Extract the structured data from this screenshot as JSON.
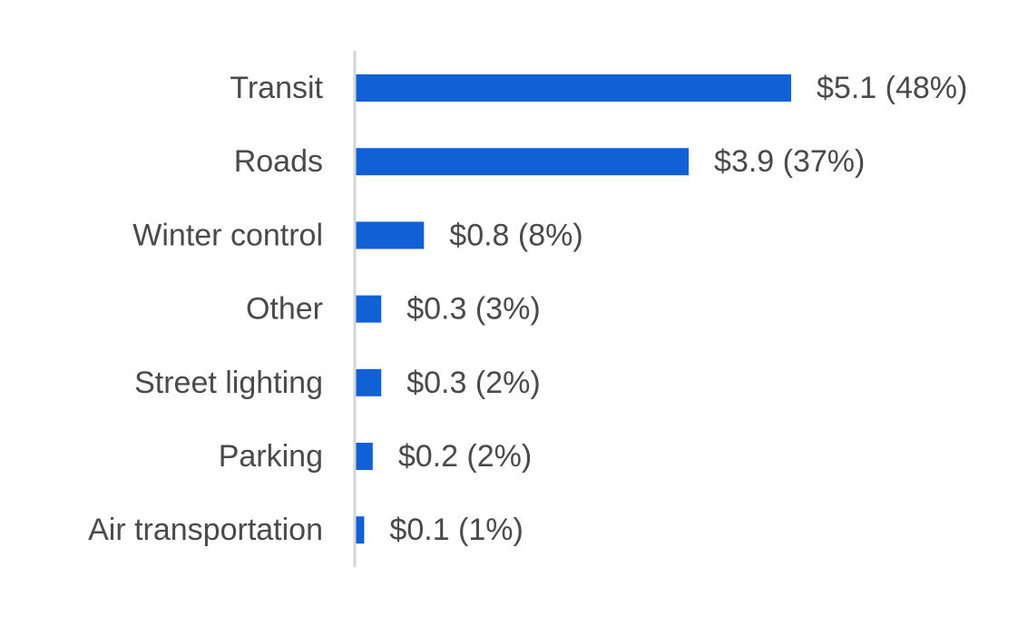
{
  "chart_data": {
    "type": "bar",
    "orientation": "horizontal",
    "categories": [
      "Transit",
      "Roads",
      "Winter control",
      "Other",
      "Street lighting",
      "Parking",
      "Air transportation"
    ],
    "values": [
      5.1,
      3.9,
      0.8,
      0.3,
      0.3,
      0.2,
      0.1
    ],
    "data_labels": [
      "$5.1 (48%)",
      "$3.9 (37%)",
      "$0.8 (8%)",
      "$0.3 (3%)",
      "$0.3 (2%)",
      "$0.2 (2%)",
      "$0.1 (1%)"
    ],
    "title": "",
    "xlabel": "",
    "ylabel": "",
    "xlim": [
      0,
      5.1
    ],
    "grid": false,
    "legend": "none",
    "colors": {
      "bar": "#1160d6",
      "axis": "#d4d4d4",
      "text": "#4a4a4a"
    }
  }
}
